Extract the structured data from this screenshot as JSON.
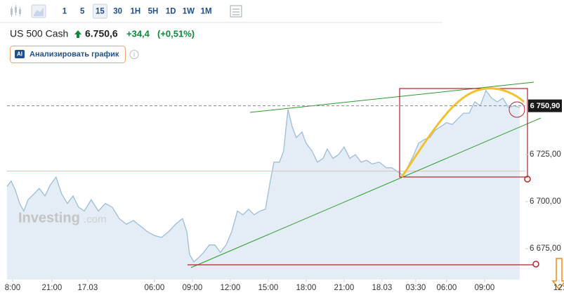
{
  "toolbar": {
    "intervals": [
      "1",
      "5",
      "15",
      "30",
      "1H",
      "5H",
      "1D",
      "1W",
      "1M"
    ],
    "selected": "15"
  },
  "instrument": {
    "name": "US 500 Cash",
    "price": "6.750,6",
    "change": "+34,4",
    "change_pct": "(+0,51%)"
  },
  "ai_button": {
    "badge": "AI",
    "label": "Анализировать график"
  },
  "watermark": {
    "brand": "Investing",
    "suffix": ".com"
  },
  "chart_data": {
    "type": "area",
    "color": "#9dbdd8",
    "fill": "#e4edf5",
    "x": [
      -0.44,
      -0.11,
      0.22,
      0.56,
      0.89,
      1.22,
      1.67,
      2.11,
      2.56,
      3,
      3.44,
      3.89,
      4.33,
      4.78,
      5.22,
      5.67,
      6.22,
      6.78,
      7.33,
      7.89,
      8.44,
      9,
      9.56,
      10.11,
      10.67,
      11.22,
      11.78,
      12.33,
      12.89,
      13.44,
      13.78,
      14,
      14.33,
      14.67,
      15.11,
      15.56,
      16,
      16.44,
      16.89,
      17.33,
      17.78,
      18.22,
      18.67,
      19.11,
      19.56,
      20,
      20.33,
      20.67,
      21.11,
      21.44,
      21.78,
      22.11,
      22.44,
      22.89,
      23.22,
      23.67,
      24.11,
      24.56,
      24.89,
      25.33,
      25.78,
      26.22,
      26.67,
      27.11,
      27.56,
      28,
      28.44,
      29,
      29.56,
      30,
      30.44,
      30.89,
      31.22,
      31.67,
      32.11,
      32.56,
      33,
      33.44,
      33.89,
      34.33,
      34.78,
      35.22,
      35.67,
      36.11,
      36.56,
      37,
      37.44,
      37.89,
      38.33,
      38.78,
      39.22,
      39.67,
      40.11
    ],
    "values": [
      6708,
      6711,
      6706,
      6699,
      6695,
      6701,
      6704,
      6707,
      6703,
      6709,
      6713,
      6704,
      6699,
      6703,
      6697,
      6695,
      6701,
      6695,
      6699,
      6697,
      6691,
      6688,
      6690,
      6687,
      6684,
      6682,
      6681,
      6684,
      6688,
      6691,
      6684,
      6672,
      6668,
      6670,
      6673,
      6677,
      6677,
      6673,
      6677,
      6684,
      6695,
      6693,
      6696,
      6693,
      6695,
      6696,
      6709,
      6721,
      6721,
      6727,
      6749,
      6740,
      6734,
      6737,
      6731,
      6727,
      6721,
      6723,
      6728,
      6723,
      6725,
      6729,
      6723,
      6725,
      6721,
      6722,
      6720,
      6721,
      6718,
      6718,
      6716,
      6714,
      6718,
      6724,
      6731,
      6733,
      6734,
      6738,
      6740,
      6742,
      6741,
      6744,
      6747,
      6747,
      6753,
      6751,
      6759,
      6755,
      6753,
      6755,
      6750,
      6751,
      6750
    ],
    "xlim": [
      -0.44,
      40.56
    ],
    "xticks": [
      {
        "value": 0,
        "label": "8:00"
      },
      {
        "value": 3.11,
        "label": "21:00"
      },
      {
        "value": 5.94,
        "label": "17.03"
      },
      {
        "value": 11.22,
        "label": "06:00"
      },
      {
        "value": 14.22,
        "label": "09:00"
      },
      {
        "value": 17.22,
        "label": "12:00"
      },
      {
        "value": 20.22,
        "label": "15:00"
      },
      {
        "value": 23.22,
        "label": "18:00"
      },
      {
        "value": 26.22,
        "label": "21:00"
      },
      {
        "value": 29.22,
        "label": "18.03"
      },
      {
        "value": 31.89,
        "label": "03:30"
      },
      {
        "value": 34.33,
        "label": "06:00"
      },
      {
        "value": 37.33,
        "label": "09:00"
      },
      {
        "value": 43.22,
        "label": "12:"
      }
    ],
    "ylim": [
      6658.6,
      6769.8
    ],
    "yticks": [
      {
        "value": 6675,
        "label": "6 675,00"
      },
      {
        "value": 6700,
        "label": "6 700,00"
      },
      {
        "value": 6725,
        "label": "6 725,00"
      }
    ],
    "last_price": {
      "value": 6750.9,
      "label": "6 750,90"
    },
    "reference_line": 6716.2,
    "grid": false
  }
}
